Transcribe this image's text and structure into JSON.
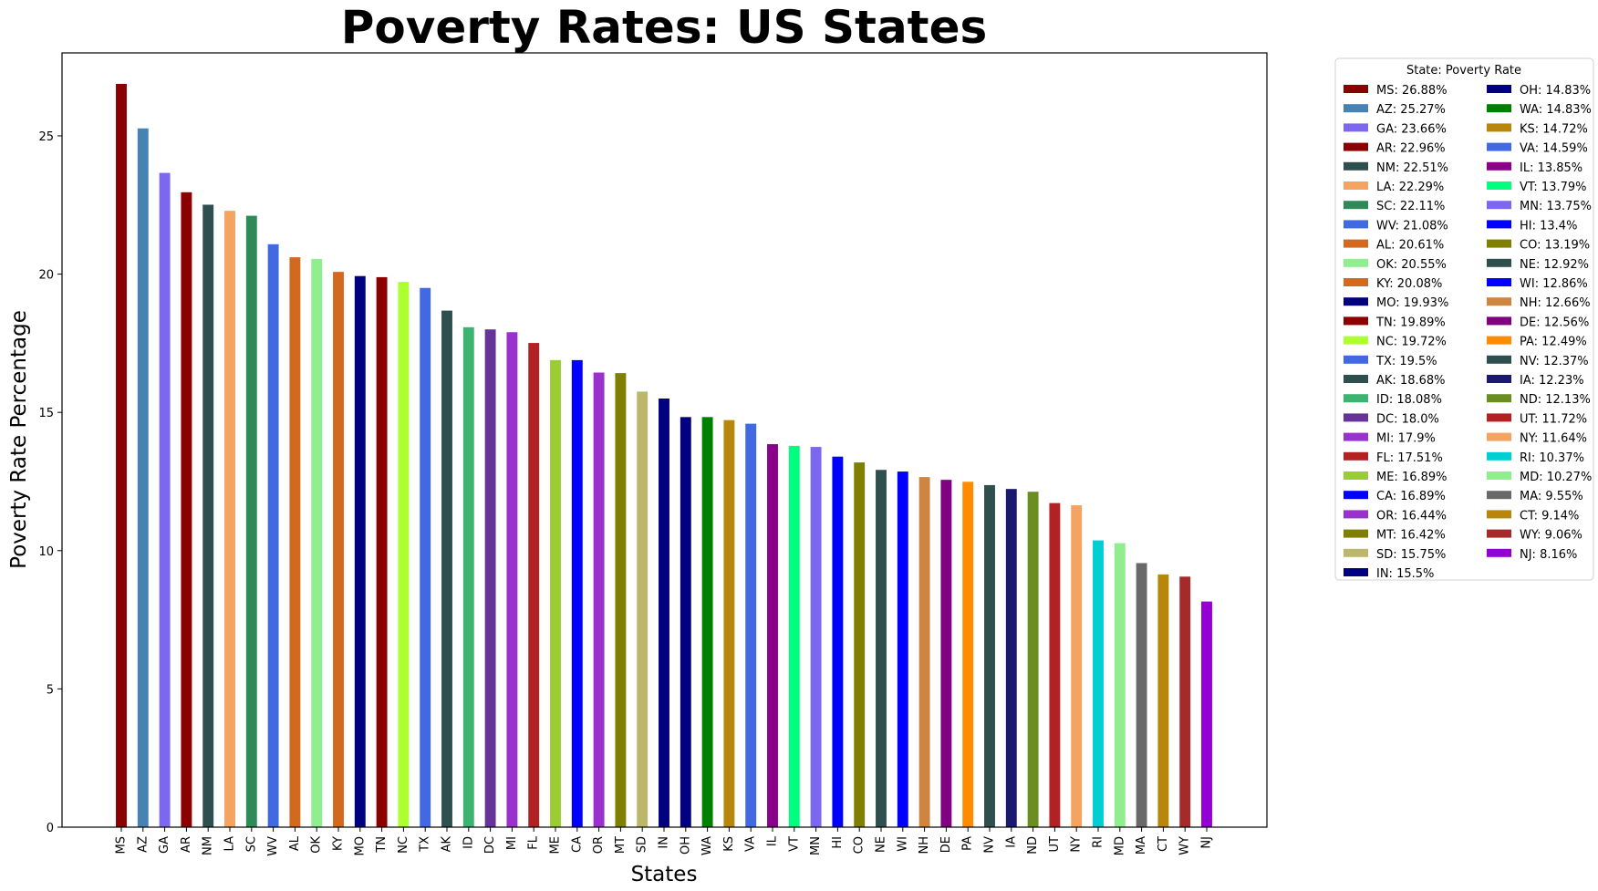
{
  "chart_data": {
    "type": "bar",
    "title": "Poverty Rates: US States",
    "xlabel": "States",
    "ylabel": "Poverty Rate Percentage",
    "ylim": [
      0,
      28
    ],
    "yticks": [
      0,
      5,
      10,
      15,
      20,
      25
    ],
    "grid": false,
    "legend_title": "State: Poverty Rate",
    "legend_position": "outside-right",
    "categories": [
      "MS",
      "AZ",
      "GA",
      "AR",
      "NM",
      "LA",
      "SC",
      "WV",
      "AL",
      "OK",
      "KY",
      "MO",
      "TN",
      "NC",
      "TX",
      "AK",
      "ID",
      "DC",
      "MI",
      "FL",
      "ME",
      "CA",
      "OR",
      "MT",
      "SD",
      "IN",
      "OH",
      "WA",
      "KS",
      "VA",
      "IL",
      "VT",
      "MN",
      "HI",
      "CO",
      "NE",
      "WI",
      "NH",
      "DE",
      "PA",
      "NV",
      "IA",
      "ND",
      "UT",
      "NY",
      "RI",
      "MD",
      "MA",
      "CT",
      "WY",
      "NJ"
    ],
    "values": [
      26.88,
      25.27,
      23.66,
      22.96,
      22.51,
      22.29,
      22.11,
      21.08,
      20.61,
      20.55,
      20.08,
      19.93,
      19.89,
      19.72,
      19.5,
      18.68,
      18.08,
      18.0,
      17.9,
      17.51,
      16.89,
      16.89,
      16.44,
      16.42,
      15.75,
      15.5,
      14.83,
      14.83,
      14.72,
      14.59,
      13.85,
      13.79,
      13.75,
      13.4,
      13.19,
      12.92,
      12.86,
      12.66,
      12.56,
      12.49,
      12.37,
      12.23,
      12.13,
      11.72,
      11.64,
      10.37,
      10.27,
      9.55,
      9.14,
      9.06,
      8.16
    ],
    "legend_labels": [
      "MS: 26.88%",
      "AZ: 25.27%",
      "GA: 23.66%",
      "AR: 22.96%",
      "NM: 22.51%",
      "LA: 22.29%",
      "SC: 22.11%",
      "WV: 21.08%",
      "AL: 20.61%",
      "OK: 20.55%",
      "KY: 20.08%",
      "MO: 19.93%",
      "TN: 19.89%",
      "NC: 19.72%",
      "TX: 19.5%",
      "AK: 18.68%",
      "ID: 18.08%",
      "DC: 18.0%",
      "MI: 17.9%",
      "FL: 17.51%",
      "ME: 16.89%",
      "CA: 16.89%",
      "OR: 16.44%",
      "MT: 16.42%",
      "SD: 15.75%",
      "IN: 15.5%",
      "OH: 14.83%",
      "WA: 14.83%",
      "KS: 14.72%",
      "VA: 14.59%",
      "IL: 13.85%",
      "VT: 13.79%",
      "MN: 13.75%",
      "HI: 13.4%",
      "CO: 13.19%",
      "NE: 12.92%",
      "WI: 12.86%",
      "NH: 12.66%",
      "DE: 12.56%",
      "PA: 12.49%",
      "NV: 12.37%",
      "IA: 12.23%",
      "ND: 12.13%",
      "UT: 11.72%",
      "NY: 11.64%",
      "RI: 10.37%",
      "MD: 10.27%",
      "MA: 9.55%",
      "CT: 9.14%",
      "WY: 9.06%",
      "NJ: 8.16%"
    ],
    "colors": [
      "#8b0000",
      "#4682b4",
      "#7b68ee",
      "#8b0000",
      "#2f4f4f",
      "#f4a460",
      "#2e8b57",
      "#4169e1",
      "#d2691e",
      "#90ee90",
      "#d2691e",
      "#000080",
      "#8b0000",
      "#adff2f",
      "#4169e1",
      "#2f4f4f",
      "#3cb371",
      "#663399",
      "#9932cc",
      "#b22222",
      "#9acd32",
      "#0000ff",
      "#9932cc",
      "#808000",
      "#bdb76b",
      "#000080",
      "#000080",
      "#008000",
      "#b8860b",
      "#4169e1",
      "#8b008b",
      "#00ff7f",
      "#7b68ee",
      "#0000ff",
      "#808000",
      "#2f4f4f",
      "#0000ff",
      "#cd853f",
      "#800080",
      "#ff8c00",
      "#2f4f4f",
      "#191970",
      "#6b8e23",
      "#b22222",
      "#f4a460",
      "#00ced1",
      "#90ee90",
      "#696969",
      "#b8860b",
      "#a52a2a",
      "#9400d3"
    ]
  }
}
